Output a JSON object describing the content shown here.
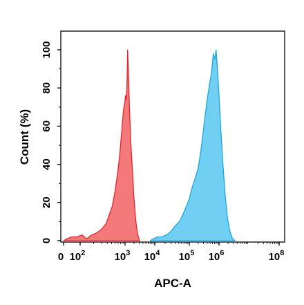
{
  "chart_data": {
    "type": "area",
    "title": "",
    "xlabel": "APC-A",
    "ylabel": "Count (%)",
    "xscale": "biexponential-log",
    "xlim": [
      0,
      100000000
    ],
    "ylim": [
      0,
      105
    ],
    "x_ticks": [
      {
        "value": 0,
        "base": "0",
        "exp": ""
      },
      {
        "value": 100,
        "base": "10",
        "exp": "2"
      },
      {
        "value": 1000,
        "base": "10",
        "exp": "3"
      },
      {
        "value": 10000,
        "base": "10",
        "exp": "4"
      },
      {
        "value": 100000,
        "base": "10",
        "exp": "5"
      },
      {
        "value": 1000000,
        "base": "10",
        "exp": "6"
      },
      {
        "value": 100000000,
        "base": "10",
        "exp": "8"
      }
    ],
    "y_ticks": [
      {
        "value": 0,
        "label": "0"
      },
      {
        "value": 20,
        "label": "20"
      },
      {
        "value": 40,
        "label": "40"
      },
      {
        "value": 60,
        "label": "60"
      },
      {
        "value": 80,
        "label": "80"
      },
      {
        "value": 100,
        "label": "100"
      }
    ],
    "grid": false,
    "legend": "none",
    "series": [
      {
        "fill": "#f4797a",
        "stroke": "#e8232a",
        "x": [
          0,
          20,
          50,
          80,
          110,
          140,
          180,
          230,
          300,
          380,
          450,
          520,
          600,
          680,
          760,
          840,
          920,
          980,
          1040,
          1100,
          1160,
          1220,
          1300,
          1400,
          1550,
          1750,
          2000,
          2300,
          2700,
          3100
        ],
        "y": [
          0,
          1,
          2,
          2,
          3,
          1,
          3,
          4,
          6,
          9,
          14,
          18,
          26,
          35,
          45,
          57,
          68,
          72,
          76,
          74,
          82,
          100,
          88,
          70,
          52,
          38,
          22,
          10,
          3,
          0
        ]
      },
      {
        "fill": "#70cff2",
        "stroke": "#1ba6e0",
        "x": [
          7000,
          9000,
          12000,
          16000,
          22000,
          30000,
          40000,
          52000,
          66000,
          82000,
          100000,
          125000,
          160000,
          200000,
          250000,
          320000,
          400000,
          480000,
          560000,
          640000,
          720000,
          800000,
          900000,
          1000000,
          1150000,
          1350000,
          1600000,
          1900000,
          2300000,
          2800000,
          3400000
        ],
        "y": [
          0,
          1,
          2,
          2,
          3,
          5,
          8,
          10,
          14,
          18,
          22,
          28,
          33,
          38,
          48,
          62,
          74,
          82,
          88,
          98,
          95,
          100,
          88,
          76,
          58,
          40,
          24,
          12,
          5,
          1,
          0
        ]
      }
    ]
  }
}
